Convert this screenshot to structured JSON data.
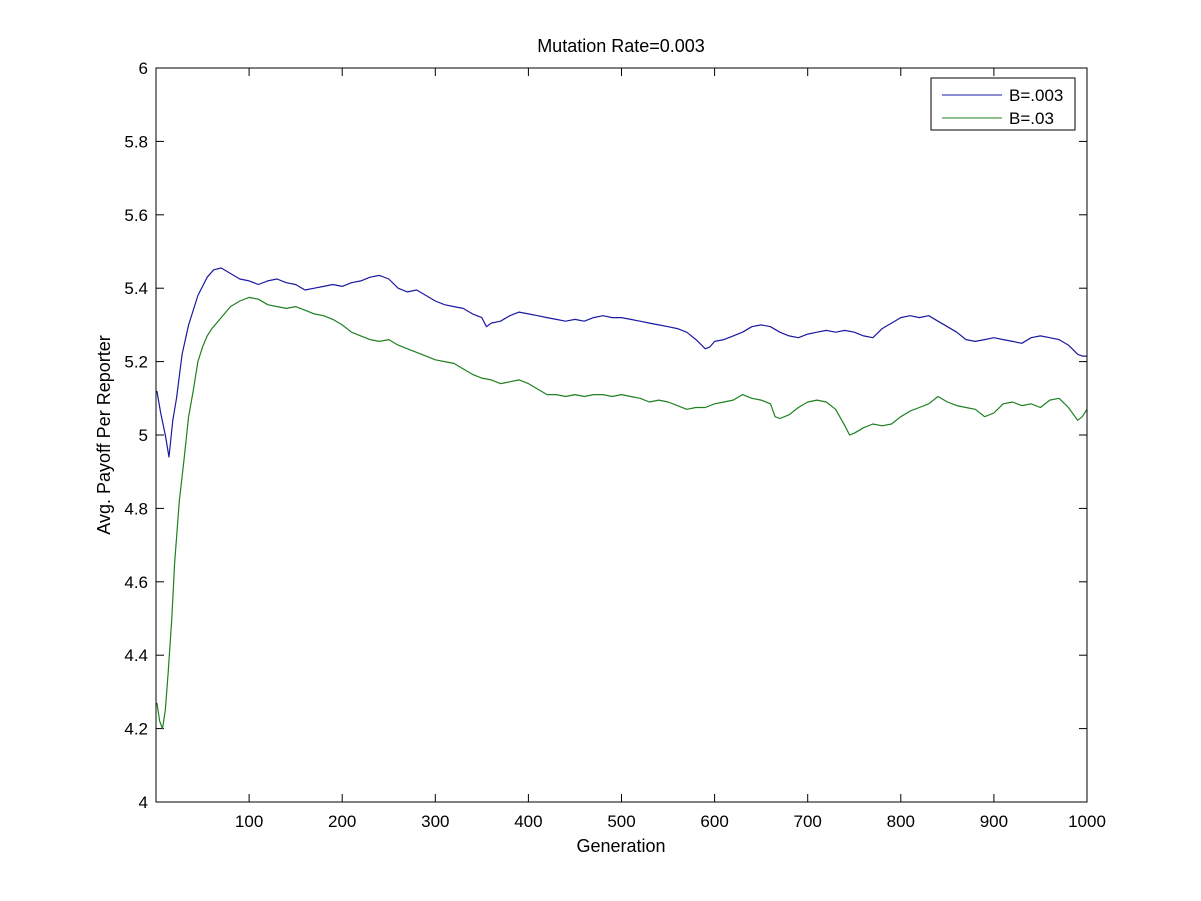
{
  "chart_data": {
    "type": "line",
    "title": "Mutation Rate=0.003",
    "xlabel": "Generation",
    "ylabel": "Avg. Payoff Per Reporter",
    "xlim": [
      0,
      1000
    ],
    "ylim": [
      4,
      6
    ],
    "xticks": [
      100,
      200,
      300,
      400,
      500,
      600,
      700,
      800,
      900,
      1000
    ],
    "yticks": [
      4,
      4.2,
      4.4,
      4.6,
      4.8,
      5,
      5.2,
      5.4,
      5.6,
      5.8,
      6
    ],
    "grid": false,
    "legend_position": "top-right",
    "series": [
      {
        "name": "B=.003",
        "color": "#1a1aa0",
        "points": [
          [
            1,
            5.12
          ],
          [
            5,
            5.06
          ],
          [
            10,
            5.0
          ],
          [
            14,
            4.94
          ],
          [
            18,
            5.04
          ],
          [
            22,
            5.1
          ],
          [
            28,
            5.22
          ],
          [
            35,
            5.3
          ],
          [
            45,
            5.38
          ],
          [
            55,
            5.43
          ],
          [
            62,
            5.45
          ],
          [
            70,
            5.455
          ],
          [
            80,
            5.44
          ],
          [
            90,
            5.425
          ],
          [
            100,
            5.42
          ],
          [
            110,
            5.41
          ],
          [
            120,
            5.42
          ],
          [
            130,
            5.425
          ],
          [
            140,
            5.415
          ],
          [
            150,
            5.41
          ],
          [
            160,
            5.395
          ],
          [
            170,
            5.4
          ],
          [
            180,
            5.405
          ],
          [
            190,
            5.41
          ],
          [
            200,
            5.405
          ],
          [
            210,
            5.415
          ],
          [
            220,
            5.42
          ],
          [
            230,
            5.43
          ],
          [
            240,
            5.435
          ],
          [
            250,
            5.425
          ],
          [
            260,
            5.4
          ],
          [
            270,
            5.39
          ],
          [
            280,
            5.395
          ],
          [
            290,
            5.38
          ],
          [
            300,
            5.365
          ],
          [
            310,
            5.355
          ],
          [
            320,
            5.35
          ],
          [
            330,
            5.345
          ],
          [
            340,
            5.33
          ],
          [
            350,
            5.32
          ],
          [
            355,
            5.295
          ],
          [
            360,
            5.305
          ],
          [
            370,
            5.31
          ],
          [
            380,
            5.325
          ],
          [
            390,
            5.335
          ],
          [
            400,
            5.33
          ],
          [
            410,
            5.325
          ],
          [
            420,
            5.32
          ],
          [
            430,
            5.315
          ],
          [
            440,
            5.31
          ],
          [
            450,
            5.315
          ],
          [
            460,
            5.31
          ],
          [
            470,
            5.32
          ],
          [
            480,
            5.325
          ],
          [
            490,
            5.32
          ],
          [
            500,
            5.32
          ],
          [
            510,
            5.315
          ],
          [
            520,
            5.31
          ],
          [
            530,
            5.305
          ],
          [
            540,
            5.3
          ],
          [
            550,
            5.295
          ],
          [
            560,
            5.29
          ],
          [
            570,
            5.28
          ],
          [
            580,
            5.26
          ],
          [
            590,
            5.235
          ],
          [
            595,
            5.24
          ],
          [
            600,
            5.255
          ],
          [
            610,
            5.26
          ],
          [
            620,
            5.27
          ],
          [
            630,
            5.28
          ],
          [
            640,
            5.295
          ],
          [
            650,
            5.3
          ],
          [
            660,
            5.295
          ],
          [
            670,
            5.28
          ],
          [
            680,
            5.27
          ],
          [
            690,
            5.265
          ],
          [
            700,
            5.275
          ],
          [
            710,
            5.28
          ],
          [
            720,
            5.285
          ],
          [
            730,
            5.28
          ],
          [
            740,
            5.285
          ],
          [
            750,
            5.28
          ],
          [
            760,
            5.27
          ],
          [
            770,
            5.265
          ],
          [
            780,
            5.29
          ],
          [
            790,
            5.305
          ],
          [
            800,
            5.32
          ],
          [
            810,
            5.325
          ],
          [
            820,
            5.32
          ],
          [
            830,
            5.325
          ],
          [
            840,
            5.31
          ],
          [
            850,
            5.295
          ],
          [
            860,
            5.28
          ],
          [
            870,
            5.26
          ],
          [
            880,
            5.255
          ],
          [
            890,
            5.26
          ],
          [
            900,
            5.265
          ],
          [
            910,
            5.26
          ],
          [
            920,
            5.255
          ],
          [
            930,
            5.25
          ],
          [
            940,
            5.265
          ],
          [
            950,
            5.27
          ],
          [
            960,
            5.265
          ],
          [
            970,
            5.26
          ],
          [
            980,
            5.245
          ],
          [
            990,
            5.22
          ],
          [
            995,
            5.215
          ],
          [
            1000,
            5.215
          ]
        ]
      },
      {
        "name": "B=.03",
        "color": "#1f801f",
        "points": [
          [
            1,
            4.27
          ],
          [
            4,
            4.22
          ],
          [
            7,
            4.2
          ],
          [
            10,
            4.25
          ],
          [
            13,
            4.35
          ],
          [
            17,
            4.5
          ],
          [
            20,
            4.65
          ],
          [
            25,
            4.82
          ],
          [
            30,
            4.93
          ],
          [
            35,
            5.05
          ],
          [
            40,
            5.12
          ],
          [
            45,
            5.2
          ],
          [
            50,
            5.24
          ],
          [
            55,
            5.27
          ],
          [
            60,
            5.29
          ],
          [
            70,
            5.32
          ],
          [
            80,
            5.35
          ],
          [
            90,
            5.365
          ],
          [
            100,
            5.375
          ],
          [
            110,
            5.37
          ],
          [
            120,
            5.355
          ],
          [
            130,
            5.35
          ],
          [
            140,
            5.345
          ],
          [
            150,
            5.35
          ],
          [
            160,
            5.34
          ],
          [
            170,
            5.33
          ],
          [
            180,
            5.325
          ],
          [
            190,
            5.315
          ],
          [
            200,
            5.3
          ],
          [
            210,
            5.28
          ],
          [
            220,
            5.27
          ],
          [
            230,
            5.26
          ],
          [
            240,
            5.255
          ],
          [
            250,
            5.26
          ],
          [
            260,
            5.245
          ],
          [
            270,
            5.235
          ],
          [
            280,
            5.225
          ],
          [
            290,
            5.215
          ],
          [
            300,
            5.205
          ],
          [
            310,
            5.2
          ],
          [
            320,
            5.195
          ],
          [
            330,
            5.18
          ],
          [
            340,
            5.165
          ],
          [
            350,
            5.155
          ],
          [
            360,
            5.15
          ],
          [
            370,
            5.14
          ],
          [
            380,
            5.145
          ],
          [
            390,
            5.15
          ],
          [
            400,
            5.14
          ],
          [
            410,
            5.125
          ],
          [
            420,
            5.11
          ],
          [
            430,
            5.11
          ],
          [
            440,
            5.105
          ],
          [
            450,
            5.11
          ],
          [
            460,
            5.105
          ],
          [
            470,
            5.11
          ],
          [
            480,
            5.11
          ],
          [
            490,
            5.105
          ],
          [
            500,
            5.11
          ],
          [
            510,
            5.105
          ],
          [
            520,
            5.1
          ],
          [
            530,
            5.09
          ],
          [
            540,
            5.095
          ],
          [
            550,
            5.09
          ],
          [
            560,
            5.08
          ],
          [
            570,
            5.07
          ],
          [
            580,
            5.075
          ],
          [
            590,
            5.075
          ],
          [
            600,
            5.085
          ],
          [
            610,
            5.09
          ],
          [
            620,
            5.095
          ],
          [
            630,
            5.11
          ],
          [
            640,
            5.1
          ],
          [
            650,
            5.095
          ],
          [
            660,
            5.085
          ],
          [
            665,
            5.05
          ],
          [
            670,
            5.045
          ],
          [
            680,
            5.055
          ],
          [
            690,
            5.075
          ],
          [
            700,
            5.09
          ],
          [
            710,
            5.095
          ],
          [
            720,
            5.09
          ],
          [
            730,
            5.07
          ],
          [
            740,
            5.025
          ],
          [
            745,
            5.0
          ],
          [
            750,
            5.005
          ],
          [
            760,
            5.02
          ],
          [
            770,
            5.03
          ],
          [
            780,
            5.025
          ],
          [
            790,
            5.03
          ],
          [
            800,
            5.05
          ],
          [
            810,
            5.065
          ],
          [
            820,
            5.075
          ],
          [
            830,
            5.085
          ],
          [
            840,
            5.105
          ],
          [
            850,
            5.09
          ],
          [
            860,
            5.08
          ],
          [
            870,
            5.075
          ],
          [
            880,
            5.07
          ],
          [
            890,
            5.05
          ],
          [
            900,
            5.06
          ],
          [
            910,
            5.085
          ],
          [
            920,
            5.09
          ],
          [
            930,
            5.08
          ],
          [
            940,
            5.085
          ],
          [
            950,
            5.075
          ],
          [
            960,
            5.095
          ],
          [
            970,
            5.1
          ],
          [
            980,
            5.075
          ],
          [
            990,
            5.04
          ],
          [
            995,
            5.05
          ],
          [
            1000,
            5.07
          ]
        ]
      }
    ]
  }
}
